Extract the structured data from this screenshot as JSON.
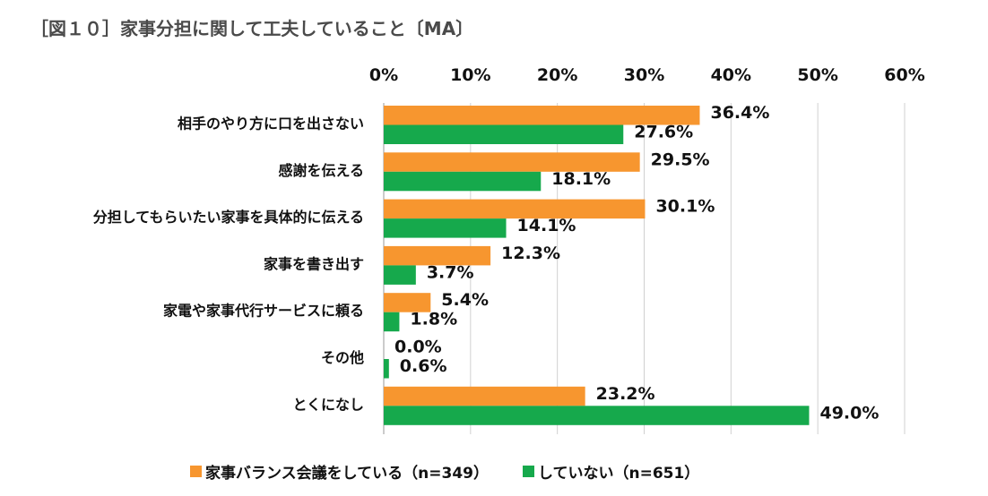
{
  "figure_title": "［図１０］家事分担に関して工夫していること〔MA〕",
  "colors": {
    "series1": "#f7962f",
    "series2": "#16a94c",
    "grid": "#d0d0d0",
    "text": "#111111"
  },
  "chart_data": {
    "type": "bar",
    "orientation": "horizontal",
    "title": "［図１０］家事分担に関して工夫していること〔MA〕",
    "categories": [
      "相手のやり方に口を出さない",
      "感謝を伝える",
      "分担してもらいたい家事を具体的に伝える",
      "家事を書き出す",
      "家電や家事代行サービスに頼る",
      "その他",
      "とくになし"
    ],
    "series": [
      {
        "name": "家事バランス会議をしている（n=349）",
        "values": [
          36.4,
          29.5,
          30.1,
          12.3,
          5.4,
          0.0,
          23.2
        ],
        "labels": [
          "36.4%",
          "29.5%",
          "30.1%",
          "12.3%",
          "5.4%",
          "0.0%",
          "23.2%"
        ]
      },
      {
        "name": "していない（n=651）",
        "values": [
          27.6,
          18.1,
          14.1,
          3.7,
          1.8,
          0.6,
          49.0
        ],
        "labels": [
          "27.6%",
          "18.1%",
          "14.1%",
          "3.7%",
          "1.8%",
          "0.6%",
          "49.0%"
        ]
      }
    ],
    "xlim": [
      0,
      60
    ],
    "x_ticks": [
      0,
      10,
      20,
      30,
      40,
      50,
      60
    ],
    "x_tick_labels": [
      "0%",
      "10%",
      "20%",
      "30%",
      "40%",
      "50%",
      "60%"
    ],
    "xlabel": "",
    "ylabel": "",
    "grid": true,
    "axis_position": "top",
    "legend_position": "bottom"
  }
}
